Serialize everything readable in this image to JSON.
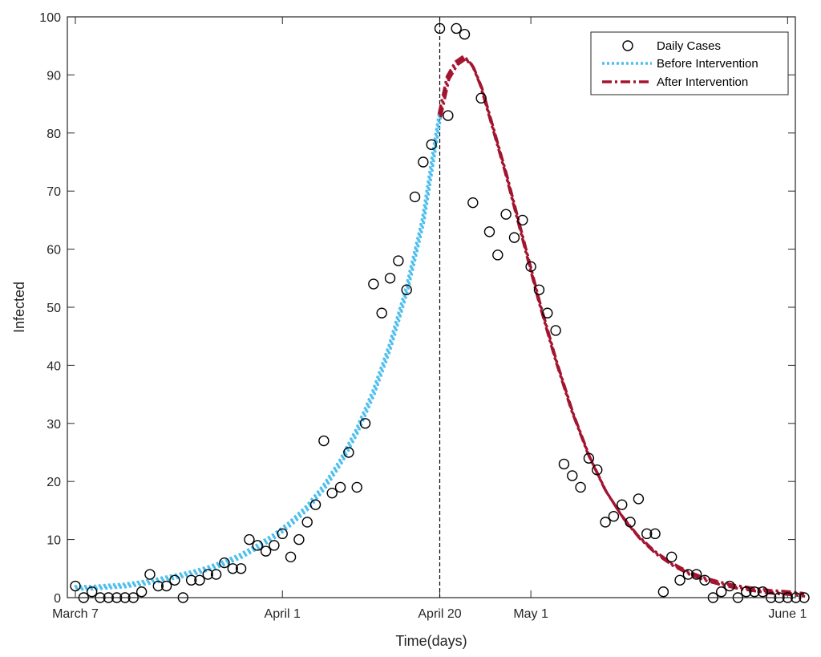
{
  "chart_data": {
    "type": "scatter",
    "title": "",
    "xlabel": "Time(days)",
    "ylabel": "Infected",
    "xlim": [
      0,
      88
    ],
    "ylim": [
      0,
      100
    ],
    "yticks": [
      0,
      10,
      20,
      30,
      40,
      50,
      60,
      70,
      80,
      90,
      100
    ],
    "xticks": [
      {
        "value": 0,
        "label": "March 7"
      },
      {
        "value": 25,
        "label": "April 1"
      },
      {
        "value": 44,
        "label": "April 20"
      },
      {
        "value": 55,
        "label": "May 1"
      },
      {
        "value": 86,
        "label": "June 1"
      }
    ],
    "intervention": {
      "x": 44,
      "style": "dashed"
    },
    "legend": {
      "position": "top-right",
      "entries": [
        {
          "label": "Daily Cases",
          "key": "cases"
        },
        {
          "label": "Before Intervention",
          "key": "before"
        },
        {
          "label": "After Intervention",
          "key": "after"
        }
      ]
    },
    "colors": {
      "cases": "#000000",
      "before": "#4DBEEE",
      "after": "#A2142F"
    },
    "series": [
      {
        "name": "Daily Cases",
        "kind": "markers",
        "x": [
          0,
          1,
          2,
          3,
          4,
          5,
          6,
          7,
          8,
          9,
          10,
          11,
          12,
          13,
          14,
          15,
          16,
          17,
          18,
          19,
          20,
          21,
          22,
          23,
          24,
          25,
          26,
          27,
          28,
          29,
          30,
          31,
          32,
          33,
          34,
          35,
          36,
          37,
          38,
          39,
          40,
          41,
          42,
          43,
          44,
          45,
          46,
          47,
          48,
          49,
          50,
          51,
          52,
          53,
          54,
          55,
          56,
          57,
          58,
          59,
          60,
          61,
          62,
          63,
          64,
          65,
          66,
          67,
          68,
          69,
          70,
          71,
          72,
          73,
          74,
          75,
          76,
          77,
          78,
          79,
          80,
          81,
          82,
          83,
          84,
          85,
          86,
          87,
          88
        ],
        "values": [
          2,
          0,
          1,
          0,
          0,
          0,
          0,
          0,
          1,
          4,
          2,
          2,
          3,
          0,
          3,
          3,
          4,
          4,
          6,
          5,
          5,
          10,
          9,
          8,
          9,
          11,
          7,
          10,
          13,
          16,
          27,
          18,
          19,
          25,
          19,
          30,
          54,
          49,
          55,
          58,
          53,
          69,
          75,
          78,
          98,
          83,
          98,
          97,
          68,
          86,
          63,
          59,
          66,
          62,
          65,
          57,
          53,
          49,
          46,
          23,
          21,
          19,
          24,
          22,
          13,
          14,
          16,
          13,
          17,
          11,
          11,
          1,
          7,
          3,
          4,
          4,
          3,
          0,
          1,
          2,
          0,
          1,
          1,
          1,
          0,
          0,
          0,
          0,
          0
        ]
      },
      {
        "name": "Before Intervention",
        "kind": "curve",
        "x": [
          0,
          2,
          4,
          6,
          8,
          10,
          12,
          14,
          16,
          18,
          20,
          22,
          24,
          26,
          28,
          30,
          32,
          34,
          36,
          38,
          40,
          42,
          44
        ],
        "values": [
          1.7,
          1.7,
          1.9,
          2.1,
          2.5,
          3.0,
          3.6,
          4.2,
          5.0,
          6.0,
          7.2,
          8.8,
          10.6,
          12.8,
          15.5,
          19.0,
          23.3,
          28.7,
          35.3,
          43.3,
          53.0,
          65.0,
          83.0
        ]
      },
      {
        "name": "After Intervention",
        "kind": "curve",
        "x": [
          44,
          45,
          46,
          47,
          48,
          49,
          50,
          52,
          54,
          56,
          58,
          60,
          62,
          64,
          66,
          68,
          70,
          72,
          74,
          76,
          78,
          80,
          82,
          84,
          86,
          88
        ],
        "values": [
          83.0,
          89.5,
          92.0,
          93.0,
          91.5,
          88.0,
          83.0,
          73.0,
          62.0,
          51.0,
          41.0,
          32.0,
          24.5,
          18.5,
          14.0,
          10.5,
          7.8,
          5.8,
          4.3,
          3.2,
          2.4,
          1.8,
          1.4,
          1.0,
          0.8,
          0.5
        ]
      }
    ]
  }
}
